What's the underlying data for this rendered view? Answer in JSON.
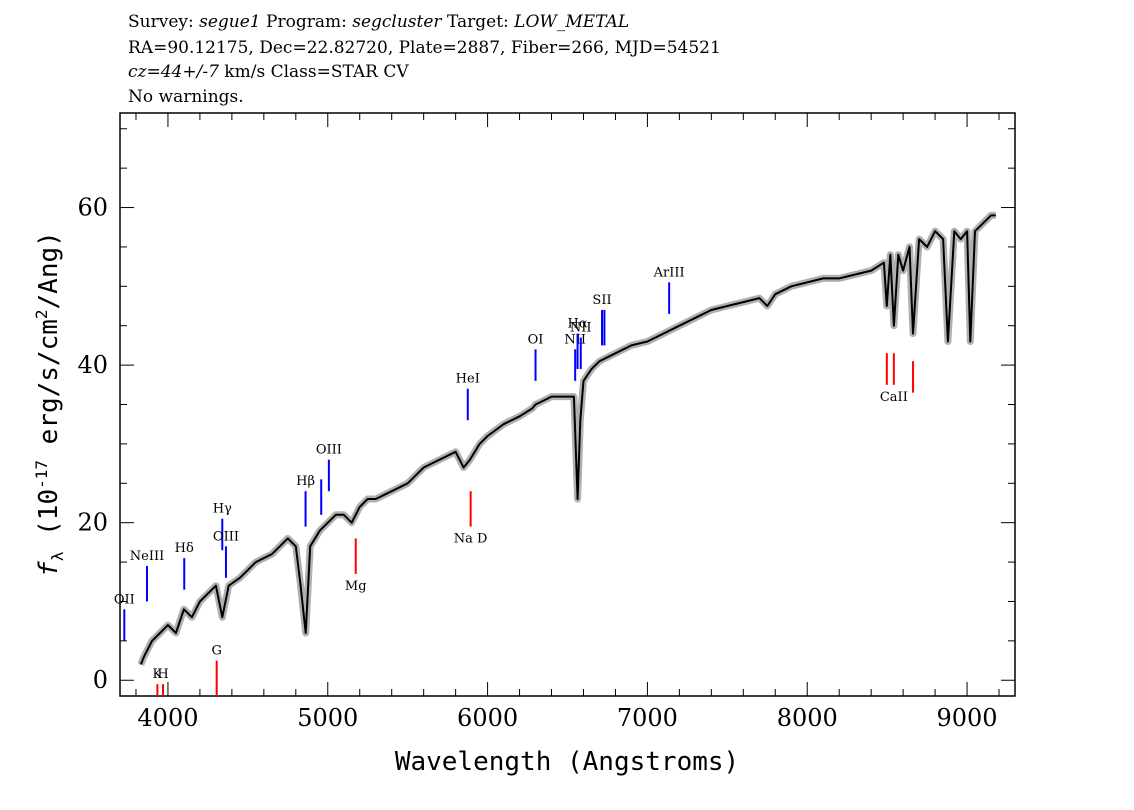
{
  "header": {
    "survey_label": "Survey: ",
    "survey": "segue1",
    "program_label": " Program: ",
    "program": "segcluster",
    "target_label": " Target: ",
    "target": "LOW_METAL",
    "line2": "RA=90.12175, Dec=22.82720, Plate=2887, Fiber=266, MJD=54521",
    "cz": "cz=44+/-7",
    "cz_rest": " km/s Class=STAR CV",
    "line4": "No warnings."
  },
  "chart_data": {
    "type": "line",
    "title": "",
    "xlabel": "Wavelength (Angstroms)",
    "ylabel": "f_λ (10^-17 erg/s/cm^2/Ang)",
    "xlim": [
      3700,
      9300
    ],
    "ylim": [
      -2,
      72
    ],
    "xticks": [
      4000,
      5000,
      6000,
      7000,
      8000,
      9000
    ],
    "yticks": [
      0,
      20,
      40,
      60
    ],
    "grid": false,
    "colors": {
      "flux": "#000000",
      "error": "#b0b0b0",
      "emission": "#0000ff",
      "absorption": "#ff0000"
    },
    "series": [
      {
        "x": [
          3830,
          3850,
          3900,
          3950,
          4000,
          4050,
          4100,
          4150,
          4200,
          4250,
          4300,
          4340,
          4380,
          4450,
          4500,
          4550,
          4600,
          4650,
          4700,
          4750,
          4800,
          4830,
          4862,
          4890,
          4950,
          5000,
          5050,
          5100,
          5150,
          5200,
          5250,
          5300,
          5400,
          5500,
          5600,
          5700,
          5800,
          5850,
          5890,
          5950,
          6000,
          6100,
          6200,
          6280,
          6300,
          6350,
          6400,
          6450,
          6500,
          6540,
          6563,
          6580,
          6600,
          6650,
          6700,
          6800,
          6900,
          7000,
          7100,
          7200,
          7300,
          7400,
          7500,
          7600,
          7700,
          7750,
          7800,
          7900,
          8000,
          8100,
          8200,
          8300,
          8400,
          8480,
          8498,
          8520,
          8542,
          8570,
          8600,
          8640,
          8662,
          8700,
          8750,
          8800,
          8850,
          8880,
          8920,
          8960,
          9000,
          9020,
          9050,
          9100,
          9150,
          9180
        ],
        "y": [
          2,
          3,
          5,
          6,
          7,
          6,
          9,
          8,
          10,
          11,
          12,
          8,
          12,
          13,
          14,
          15,
          15.5,
          16,
          17,
          18,
          17,
          12,
          6,
          17,
          19,
          20,
          21,
          21,
          20,
          22,
          23,
          23,
          24,
          25,
          27,
          28,
          29,
          27,
          28,
          30,
          31,
          32.5,
          33.5,
          34.5,
          35,
          35.5,
          36,
          36,
          36,
          36,
          23,
          33,
          38,
          39.5,
          40.5,
          41.5,
          42.5,
          43,
          44,
          45,
          46,
          47,
          47.5,
          48,
          48.5,
          47.5,
          49,
          50,
          50.5,
          51,
          51,
          51.5,
          52,
          53,
          47.5,
          54,
          45,
          54,
          52,
          55,
          44,
          56,
          55,
          57,
          56,
          43,
          57,
          56,
          57,
          43,
          57,
          58,
          59,
          59
        ]
      }
    ],
    "line_markers": [
      {
        "label": "OII",
        "wave": 3727,
        "kind": "emission",
        "y_low": 5,
        "y_high": 9
      },
      {
        "label": "NeIII",
        "wave": 3869,
        "kind": "emission",
        "y_low": 10,
        "y_high": 14.5
      },
      {
        "label": "Hδ",
        "wave": 4102,
        "kind": "emission",
        "y_low": 11.5,
        "y_high": 15.5
      },
      {
        "label": "Hγ",
        "wave": 4340,
        "kind": "emission",
        "y_low": 16.5,
        "y_high": 20.5
      },
      {
        "label": "OIII",
        "wave": 4363,
        "kind": "emission",
        "y_low": 13,
        "y_high": 17
      },
      {
        "label": "Hβ",
        "wave": 4861,
        "kind": "emission",
        "y_low": 19.5,
        "y_high": 24
      },
      {
        "label": "",
        "wave": 4959,
        "kind": "emission",
        "y_low": 21,
        "y_high": 25.5
      },
      {
        "label": "OIII",
        "wave": 5007,
        "kind": "emission",
        "y_low": 24,
        "y_high": 28
      },
      {
        "label": "HeI",
        "wave": 5876,
        "kind": "emission",
        "y_low": 33,
        "y_high": 37
      },
      {
        "label": "OI",
        "wave": 6300,
        "kind": "emission",
        "y_low": 38,
        "y_high": 42
      },
      {
        "label": "NII",
        "wave": 6548,
        "kind": "emission",
        "y_low": 38,
        "y_high": 42
      },
      {
        "label": "Hα",
        "wave": 6563,
        "kind": "emission",
        "y_low": 39.5,
        "y_high": 44
      },
      {
        "label": "NII",
        "wave": 6583,
        "kind": "emission",
        "y_low": 39.5,
        "y_high": 43.5
      },
      {
        "label": "SII",
        "wave": 6716,
        "kind": "emission",
        "y_low": 42.5,
        "y_high": 47
      },
      {
        "label": "",
        "wave": 6731,
        "kind": "emission",
        "y_low": 42.5,
        "y_high": 47
      },
      {
        "label": "ArIII",
        "wave": 7136,
        "kind": "emission",
        "y_low": 46.5,
        "y_high": 50.5
      },
      {
        "label": "K",
        "wave": 3934,
        "kind": "absorption",
        "y_low": -2,
        "y_high": -0.5
      },
      {
        "label": "H",
        "wave": 3969,
        "kind": "absorption",
        "y_low": -2,
        "y_high": -0.5
      },
      {
        "label": "G",
        "wave": 4305,
        "kind": "absorption",
        "y_low": -2,
        "y_high": 2.5
      },
      {
        "label": "Mg",
        "wave": 5175,
        "kind": "absorption",
        "y_low": 13.5,
        "y_high": 18
      },
      {
        "label": "Na D",
        "wave": 5894,
        "kind": "absorption",
        "y_low": 19.5,
        "y_high": 24
      },
      {
        "label": "",
        "wave": 8498,
        "kind": "absorption",
        "y_low": 37.5,
        "y_high": 41.5
      },
      {
        "label": "CaII",
        "wave": 8542,
        "kind": "absorption",
        "y_low": 37.5,
        "y_high": 41.5
      },
      {
        "label": "",
        "wave": 8662,
        "kind": "absorption",
        "y_low": 36.5,
        "y_high": 40.5
      }
    ]
  }
}
